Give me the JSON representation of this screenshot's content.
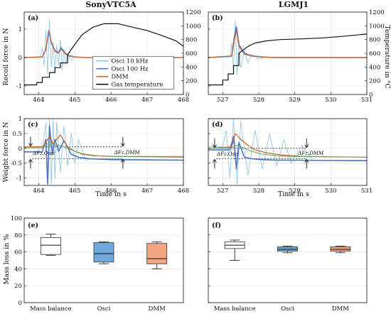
{
  "figure": {
    "titles": [
      "SonyVTC5A",
      "LGMJ1"
    ],
    "recoil_ylabel": "Recoil force in N",
    "temp_ylabel": "Temperature in °C",
    "weight_ylabel": "Weight force in N",
    "time_xlabel": "Time in s",
    "mass_ylabel": "Mass loss in %"
  },
  "chart_data": [
    {
      "panel": "(a)",
      "type": "line",
      "title": "SonyVTC5A",
      "ylabel": "Recoil force in N",
      "y2label": "Temperature in °C",
      "xlim": [
        463.6,
        468
      ],
      "ylim": [
        -1.3,
        1.6
      ],
      "y2lim": [
        0,
        1200
      ],
      "xticks": [
        464,
        465,
        466,
        467,
        468
      ],
      "yticks": [
        -1,
        0,
        1
      ],
      "y2ticks": [
        0,
        200,
        400,
        600,
        800,
        1000,
        1200
      ],
      "legend": [
        "Osci 10 kHz",
        "Osci 100 Hz",
        "DMM",
        "Gas temperature"
      ],
      "legend_position": "center-right",
      "series": [
        {
          "name": "Osci 10 kHz",
          "color": "#8ec3ea",
          "x": [
            463.6,
            464.05,
            464.1,
            464.15,
            464.2,
            464.25,
            464.3,
            464.35,
            464.4,
            464.45,
            464.5,
            464.55,
            464.6,
            464.65,
            464.7,
            464.75,
            464.8,
            464.9,
            465.0,
            465.2,
            468
          ],
          "y": [
            0,
            0.02,
            0.35,
            -0.3,
            0.95,
            -0.6,
            1.35,
            -0.35,
            0.55,
            -0.55,
            0.45,
            -0.3,
            0.62,
            -0.45,
            0.3,
            -0.25,
            0.12,
            -0.08,
            0.03,
            0,
            0
          ]
        },
        {
          "name": "Osci 100 Hz",
          "color": "#6f86d6",
          "x": [
            463.6,
            464.1,
            464.2,
            464.28,
            464.35,
            464.45,
            464.55,
            464.62,
            464.7,
            464.8,
            465.0,
            465.3,
            468
          ],
          "y": [
            0,
            0.02,
            0.3,
            0.95,
            0.55,
            0.25,
            0.18,
            0.35,
            0.22,
            0.08,
            0.02,
            0,
            0
          ]
        },
        {
          "name": "DMM",
          "color": "#c8682a",
          "x": [
            463.6,
            464.1,
            464.2,
            464.28,
            464.35,
            464.45,
            464.55,
            464.62,
            464.7,
            464.8,
            465.0,
            465.3,
            468
          ],
          "y": [
            0,
            0.02,
            0.28,
            0.92,
            0.5,
            0.22,
            0.15,
            0.3,
            0.18,
            0.06,
            0.02,
            0,
            0
          ]
        },
        {
          "name": "Gas temperature",
          "color": "#111111",
          "axis": "right",
          "x": [
            463.6,
            463.95,
            463.95,
            464.1,
            464.1,
            464.3,
            464.3,
            464.45,
            464.45,
            464.6,
            464.6,
            464.8,
            464.8,
            465.0,
            465.2,
            465.5,
            465.8,
            466.2,
            466.6,
            467.0,
            467.4,
            467.8,
            468
          ],
          "y": [
            140,
            140,
            175,
            175,
            250,
            250,
            320,
            320,
            390,
            390,
            460,
            460,
            580,
            730,
            870,
            980,
            1030,
            1030,
            980,
            930,
            860,
            780,
            700
          ]
        }
      ]
    },
    {
      "panel": "(b)",
      "type": "line",
      "title": "LGMJ1",
      "xlim": [
        526.6,
        531
      ],
      "ylim": [
        -1.3,
        1.6
      ],
      "y2lim": [
        0,
        1200
      ],
      "xticks": [
        527,
        528,
        529,
        530,
        531
      ],
      "yticks": [
        -1,
        0,
        1
      ],
      "y2ticks": [
        0,
        200,
        400,
        600,
        800,
        1000,
        1200
      ],
      "series": [
        {
          "name": "Osci 10 kHz",
          "x": [
            526.6,
            527.2,
            527.25,
            527.3,
            527.35,
            527.4,
            527.45,
            527.5,
            527.6,
            527.7,
            527.8,
            528.0,
            528.2,
            531
          ],
          "y": [
            0,
            0.02,
            0.5,
            -0.5,
            1.3,
            -0.6,
            0.6,
            -0.35,
            0.25,
            -0.2,
            0.12,
            -0.06,
            0.02,
            0
          ]
        },
        {
          "name": "Osci 100 Hz",
          "x": [
            526.6,
            527.25,
            527.32,
            527.38,
            527.45,
            527.6,
            527.8,
            528.1,
            528.4,
            531
          ],
          "y": [
            0,
            0.05,
            0.7,
            1.08,
            0.45,
            0.15,
            0.06,
            0.02,
            0,
            0
          ]
        },
        {
          "name": "DMM",
          "x": [
            526.6,
            527.25,
            527.32,
            527.38,
            527.45,
            527.6,
            527.8,
            528.1,
            528.4,
            531
          ],
          "y": [
            0,
            0.05,
            0.6,
            0.95,
            0.4,
            0.12,
            0.05,
            0.02,
            0,
            0
          ]
        },
        {
          "name": "Gas temperature",
          "axis": "right",
          "x": [
            526.6,
            527.0,
            527.0,
            527.15,
            527.15,
            527.3,
            527.3,
            527.45,
            527.45,
            527.7,
            527.9,
            528.2,
            528.6,
            529.2,
            529.8,
            530.4,
            531
          ],
          "y": [
            140,
            140,
            210,
            210,
            300,
            300,
            420,
            420,
            600,
            700,
            750,
            780,
            800,
            810,
            825,
            850,
            880
          ]
        }
      ]
    },
    {
      "panel": "(c)",
      "type": "line",
      "xlabel": "Time in s",
      "ylabel": "Weight force in N",
      "xlim": [
        463.6,
        468
      ],
      "ylim": [
        -1.25,
        1.0
      ],
      "xticks": [
        464,
        465,
        466,
        467,
        468
      ],
      "yticks": [
        -1,
        -0.5,
        0,
        0.5,
        1
      ],
      "annotations": [
        "ΔFz,Osci",
        "ΔFz,DMM"
      ],
      "reference_lines": [
        0.05,
        -0.35
      ],
      "series": [
        {
          "name": "Osci 10 kHz",
          "x": [
            463.6,
            464.1,
            464.2,
            464.25,
            464.3,
            464.35,
            464.4,
            464.45,
            464.5,
            464.6,
            464.7,
            464.8,
            464.9,
            465.0,
            465.1,
            465.3,
            465.5,
            468
          ],
          "y": [
            0.02,
            0.03,
            0.85,
            -1.25,
            1.0,
            -1.25,
            1.0,
            -1.0,
            0.9,
            -0.8,
            0.75,
            -0.6,
            0.5,
            -0.5,
            0.3,
            -0.4,
            -0.35,
            -0.4
          ]
        },
        {
          "name": "Osci 100 Hz",
          "x": [
            463.6,
            464.1,
            464.2,
            464.25,
            464.3,
            464.38,
            464.45,
            464.55,
            464.7,
            464.9,
            465.1,
            465.4,
            466.0,
            468
          ],
          "y": [
            -0.12,
            -0.12,
            0.3,
            -1.2,
            0.75,
            -0.2,
            0.3,
            -0.1,
            0.25,
            -0.2,
            -0.3,
            -0.35,
            -0.38,
            -0.4
          ]
        },
        {
          "name": "DMM",
          "x": [
            463.6,
            464.1,
            464.2,
            464.3,
            464.4,
            464.5,
            464.6,
            464.7,
            464.8,
            465.0,
            465.2,
            465.5,
            466.0,
            468
          ],
          "y": [
            0.05,
            0.05,
            0.2,
            0.4,
            0.15,
            0.3,
            0.45,
            0.25,
            0.05,
            -0.1,
            -0.2,
            -0.25,
            -0.27,
            -0.28
          ]
        },
        {
          "name": "green",
          "color": "#6aaa64",
          "x": [
            463.6,
            464.1,
            464.25,
            464.35,
            464.5,
            464.7,
            464.9,
            465.2,
            465.6,
            466.2,
            468
          ],
          "y": [
            0.02,
            0.02,
            0.15,
            0.1,
            0.12,
            0.05,
            -0.05,
            -0.18,
            -0.25,
            -0.28,
            -0.3
          ]
        }
      ]
    },
    {
      "panel": "(d)",
      "type": "line",
      "xlabel": "Time in s",
      "xlim": [
        526.6,
        531
      ],
      "ylim": [
        -1.25,
        1.0
      ],
      "xticks": [
        527,
        528,
        529,
        530,
        531
      ],
      "yticks": [
        -1,
        -0.5,
        0,
        0.5,
        1
      ],
      "annotations": [
        "ΔFz,Osci",
        "ΔFz,DMM"
      ],
      "reference_lines": [
        0.0,
        -0.35
      ],
      "series": [
        {
          "name": "Osci 10 kHz",
          "x": [
            526.6,
            527.0,
            527.1,
            527.2,
            527.3,
            527.4,
            527.5,
            527.7,
            527.9,
            528.1,
            528.3,
            528.5,
            528.7,
            528.9,
            529.2,
            529.5,
            531
          ],
          "y": [
            0.05,
            0.05,
            0.6,
            -1.0,
            1.0,
            -1.2,
            0.9,
            -0.9,
            0.6,
            -0.7,
            0.5,
            -0.6,
            0.3,
            -0.5,
            0.1,
            -0.4,
            -0.4
          ]
        },
        {
          "name": "Osci 100 Hz",
          "x": [
            526.6,
            527.2,
            527.3,
            527.38,
            527.45,
            527.6,
            527.8,
            528.1,
            528.5,
            529.0,
            531
          ],
          "y": [
            -0.05,
            -0.05,
            0.4,
            -0.7,
            0.2,
            -0.3,
            -0.35,
            -0.38,
            -0.4,
            -0.4,
            -0.42
          ]
        },
        {
          "name": "DMM",
          "x": [
            526.6,
            527.25,
            527.35,
            527.5,
            527.7,
            527.9,
            528.2,
            528.6,
            529.2,
            531
          ],
          "y": [
            0.0,
            0.05,
            0.5,
            0.3,
            0.1,
            -0.05,
            -0.15,
            -0.22,
            -0.27,
            -0.3
          ]
        },
        {
          "name": "green",
          "color": "#6aaa64",
          "x": [
            526.6,
            527.25,
            527.4,
            527.6,
            527.8,
            528.1,
            528.5,
            529.0,
            531
          ],
          "y": [
            0.0,
            0.02,
            0.1,
            0.0,
            -0.1,
            -0.2,
            -0.25,
            -0.28,
            -0.3
          ]
        }
      ]
    },
    {
      "panel": "(e)",
      "type": "box",
      "ylabel": "Mass loss in %",
      "ylim": [
        0,
        100
      ],
      "yticks": [
        0,
        20,
        40,
        60,
        80,
        100
      ],
      "categories": [
        "Mass balance",
        "Osci",
        "DMM"
      ],
      "boxes": [
        {
          "min": 56,
          "q1": 57,
          "median": 68,
          "q3": 77,
          "max": 81,
          "color": "#ffffff"
        },
        {
          "min": 46,
          "q1": 48,
          "median": 58,
          "q3": 71,
          "max": 72,
          "color": "#6fa8dc"
        },
        {
          "min": 40,
          "q1": 46,
          "median": 52,
          "q3": 70,
          "max": 72,
          "color": "#f4a582"
        }
      ]
    },
    {
      "panel": "(f)",
      "type": "box",
      "ylim": [
        0,
        100
      ],
      "yticks": [
        0,
        20,
        40,
        60,
        80,
        100
      ],
      "categories": [
        "Mass balance",
        "Osci",
        "DMM"
      ],
      "boxes": [
        {
          "min": 50,
          "q1": 64,
          "median": 68,
          "q3": 72,
          "max": 74,
          "color": "#ffffff"
        },
        {
          "min": 59,
          "q1": 61,
          "median": 63,
          "q3": 66,
          "max": 67,
          "color": "#6fa8dc"
        },
        {
          "min": 59,
          "q1": 61,
          "median": 63,
          "q3": 66,
          "max": 67,
          "color": "#f4a582"
        }
      ]
    }
  ]
}
